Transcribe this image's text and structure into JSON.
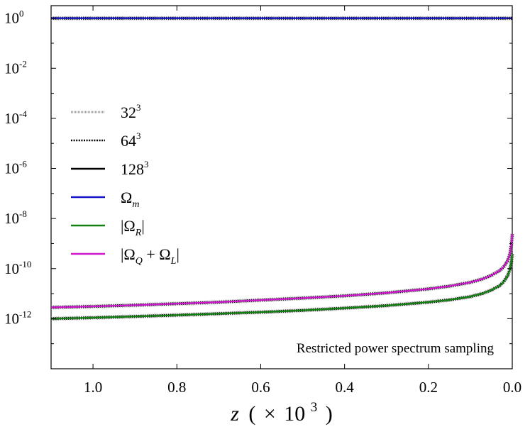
{
  "chart_data": {
    "type": "line",
    "title": "",
    "annotation": "Restricted power spectrum sampling",
    "xlabel": {
      "var": "z",
      "open": "(",
      "times": "×",
      "base": "10",
      "exp": "3",
      "close": ")"
    },
    "ylabel": "",
    "x_reversed": true,
    "xlim": [
      1.1,
      0.0
    ],
    "ylim_log10": [
      -14,
      0.5
    ],
    "x_ticks": [
      1.0,
      0.8,
      0.6,
      0.4,
      0.2,
      0.0
    ],
    "x_tick_labels": [
      "1.0",
      "0.8",
      "0.6",
      "0.4",
      "0.2",
      "0.0"
    ],
    "y_ticks": [
      {
        "log": 0,
        "base": "10",
        "exp": "0"
      },
      {
        "log": -2,
        "base": "10",
        "exp": "-2"
      },
      {
        "log": -4,
        "base": "10",
        "exp": "-4"
      },
      {
        "log": -6,
        "base": "10",
        "exp": "-6"
      },
      {
        "log": -8,
        "base": "10",
        "exp": "-8"
      },
      {
        "log": -10,
        "base": "10",
        "exp": "-10"
      },
      {
        "log": -12,
        "base": "10",
        "exp": "-12"
      }
    ],
    "legend": [
      {
        "label": "32",
        "sup": "3",
        "sub": "",
        "style": "dotted-light",
        "color": "#999999"
      },
      {
        "label": "64",
        "sup": "3",
        "sub": "",
        "style": "dotted",
        "color": "#000000"
      },
      {
        "label": "128",
        "sup": "3",
        "sub": "",
        "style": "solid",
        "color": "#000000"
      },
      {
        "label": "Ω",
        "sup": "",
        "sub": "m",
        "style": "solid",
        "color": "#1515c8"
      },
      {
        "label": "|Ω",
        "sup": "",
        "sub": "R",
        "suffix": "|",
        "style": "solid",
        "color": "#138013"
      },
      {
        "label": "|Ω",
        "sup": "",
        "sub": "Q",
        "mid": " + Ω",
        "sub2": "L",
        "suffix": "|",
        "style": "solid",
        "color": "#cc19cc"
      }
    ],
    "series": [
      {
        "name": "Ω_m",
        "color": "#1515c8",
        "x": [
          1.1,
          0.8,
          0.5,
          0.2,
          0.0
        ],
        "log10_y": [
          0,
          0,
          0,
          0,
          0
        ]
      },
      {
        "name": "|Ω_R|",
        "color": "#138013",
        "x": [
          1.1,
          1.0,
          0.9,
          0.8,
          0.7,
          0.6,
          0.5,
          0.4,
          0.3,
          0.2,
          0.15,
          0.1,
          0.07,
          0.05,
          0.03,
          0.02,
          0.01,
          0.005,
          0.002,
          0.0
        ],
        "log10_y": [
          -12.0,
          -11.96,
          -11.91,
          -11.86,
          -11.8,
          -11.74,
          -11.67,
          -11.58,
          -11.48,
          -11.34,
          -11.25,
          -11.12,
          -10.99,
          -10.86,
          -10.68,
          -10.52,
          -10.25,
          -10.0,
          -9.72,
          -9.42
        ]
      },
      {
        "name": "|Ω_Q+Ω_L|",
        "color": "#cc19cc",
        "x": [
          1.1,
          1.0,
          0.9,
          0.8,
          0.7,
          0.6,
          0.5,
          0.4,
          0.3,
          0.2,
          0.15,
          0.1,
          0.07,
          0.05,
          0.03,
          0.02,
          0.01,
          0.005,
          0.002,
          0.0
        ],
        "log10_y": [
          -11.55,
          -11.51,
          -11.46,
          -11.4,
          -11.34,
          -11.26,
          -11.18,
          -11.09,
          -10.97,
          -10.81,
          -10.7,
          -10.55,
          -10.41,
          -10.27,
          -10.08,
          -9.92,
          -9.65,
          -9.38,
          -9.05,
          -8.62
        ]
      }
    ]
  }
}
